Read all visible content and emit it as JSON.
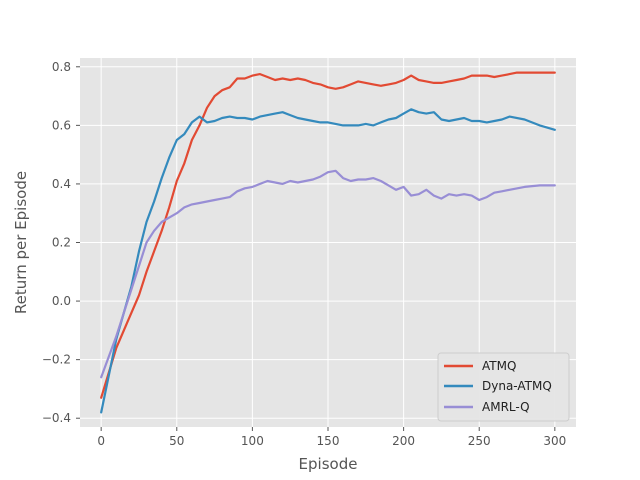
{
  "chart_data": {
    "type": "line",
    "title": "",
    "xlabel": "Episode",
    "ylabel": "Return per Episode",
    "xlim": [
      -14,
      314
    ],
    "ylim": [
      -0.43,
      0.83
    ],
    "xticks": [
      0,
      50,
      100,
      150,
      200,
      250,
      300
    ],
    "yticks": [
      -0.4,
      -0.2,
      0.0,
      0.2,
      0.4,
      0.6,
      0.8
    ],
    "grid": true,
    "legend_position": "lower-right",
    "background": "#e5e5e5",
    "series": [
      {
        "name": "ATMQ",
        "color": "#e24a33",
        "x": [
          0,
          10,
          20,
          25,
          30,
          35,
          40,
          45,
          50,
          55,
          60,
          65,
          70,
          75,
          80,
          85,
          90,
          95,
          100,
          105,
          110,
          115,
          120,
          125,
          130,
          135,
          140,
          145,
          150,
          155,
          160,
          165,
          170,
          175,
          180,
          185,
          190,
          195,
          200,
          205,
          210,
          215,
          220,
          225,
          230,
          235,
          240,
          245,
          250,
          255,
          260,
          265,
          270,
          275,
          280,
          290,
          300
        ],
        "y": [
          -0.33,
          -0.16,
          -0.04,
          0.02,
          0.1,
          0.17,
          0.24,
          0.32,
          0.41,
          0.47,
          0.55,
          0.6,
          0.66,
          0.7,
          0.72,
          0.73,
          0.76,
          0.76,
          0.77,
          0.775,
          0.765,
          0.755,
          0.76,
          0.755,
          0.76,
          0.755,
          0.745,
          0.74,
          0.73,
          0.725,
          0.73,
          0.74,
          0.75,
          0.745,
          0.74,
          0.735,
          0.74,
          0.745,
          0.755,
          0.77,
          0.755,
          0.75,
          0.745,
          0.745,
          0.75,
          0.755,
          0.76,
          0.77,
          0.77,
          0.77,
          0.765,
          0.77,
          0.775,
          0.78,
          0.78,
          0.78,
          0.78
        ]
      },
      {
        "name": "Dyna-ATMQ",
        "color": "#348abd",
        "x": [
          0,
          10,
          20,
          25,
          30,
          35,
          40,
          45,
          50,
          55,
          60,
          65,
          70,
          75,
          80,
          85,
          90,
          95,
          100,
          105,
          110,
          115,
          120,
          125,
          130,
          135,
          140,
          145,
          150,
          155,
          160,
          165,
          170,
          175,
          180,
          185,
          190,
          195,
          200,
          205,
          210,
          215,
          220,
          225,
          230,
          235,
          240,
          245,
          250,
          255,
          260,
          265,
          270,
          280,
          290,
          300
        ],
        "y": [
          -0.38,
          -0.13,
          0.05,
          0.17,
          0.27,
          0.34,
          0.42,
          0.49,
          0.55,
          0.57,
          0.61,
          0.63,
          0.61,
          0.615,
          0.625,
          0.63,
          0.625,
          0.625,
          0.62,
          0.63,
          0.635,
          0.64,
          0.645,
          0.635,
          0.625,
          0.62,
          0.615,
          0.61,
          0.61,
          0.605,
          0.6,
          0.6,
          0.6,
          0.605,
          0.6,
          0.61,
          0.62,
          0.625,
          0.64,
          0.655,
          0.645,
          0.64,
          0.645,
          0.62,
          0.615,
          0.62,
          0.625,
          0.615,
          0.615,
          0.61,
          0.615,
          0.62,
          0.63,
          0.62,
          0.6,
          0.585
        ]
      },
      {
        "name": "AMRL-Q",
        "color": "#988ed5",
        "x": [
          0,
          10,
          20,
          25,
          30,
          35,
          40,
          45,
          50,
          55,
          60,
          65,
          70,
          75,
          80,
          85,
          90,
          95,
          100,
          105,
          110,
          115,
          120,
          125,
          130,
          135,
          140,
          145,
          150,
          155,
          160,
          165,
          170,
          175,
          180,
          185,
          190,
          195,
          200,
          205,
          210,
          215,
          220,
          225,
          230,
          235,
          240,
          245,
          250,
          255,
          260,
          265,
          270,
          280,
          290,
          300
        ],
        "y": [
          -0.26,
          -0.12,
          0.04,
          0.12,
          0.2,
          0.24,
          0.27,
          0.285,
          0.3,
          0.32,
          0.33,
          0.335,
          0.34,
          0.345,
          0.35,
          0.355,
          0.375,
          0.385,
          0.39,
          0.4,
          0.41,
          0.405,
          0.4,
          0.41,
          0.405,
          0.41,
          0.415,
          0.425,
          0.44,
          0.445,
          0.42,
          0.41,
          0.415,
          0.415,
          0.42,
          0.41,
          0.395,
          0.38,
          0.39,
          0.36,
          0.365,
          0.38,
          0.36,
          0.35,
          0.365,
          0.36,
          0.365,
          0.36,
          0.345,
          0.355,
          0.37,
          0.375,
          0.38,
          0.39,
          0.395,
          0.395
        ]
      }
    ]
  }
}
